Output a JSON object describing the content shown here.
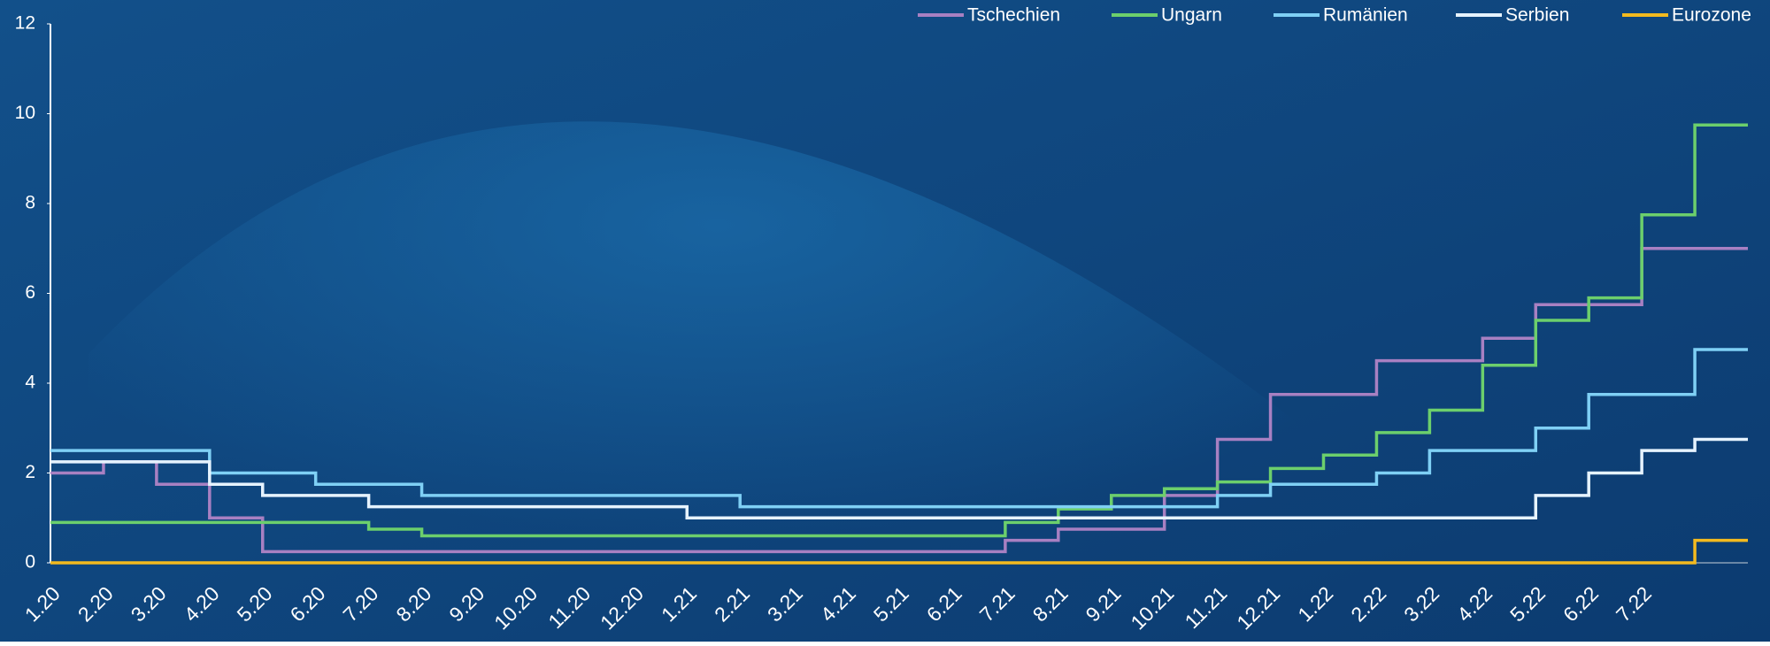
{
  "chart_data": {
    "type": "step",
    "categories": [
      "1.20",
      "2.20",
      "3.20",
      "4.20",
      "5.20",
      "6.20",
      "7.20",
      "8.20",
      "9.20",
      "10.20",
      "11.20",
      "12.20",
      "1.21",
      "2.21",
      "3.21",
      "4.21",
      "5.21",
      "6.21",
      "7.21",
      "8.21",
      "9.21",
      "10.21",
      "11.21",
      "12.21",
      "1.22",
      "2.22",
      "3.22",
      "4.22",
      "5.22",
      "6.22",
      "7.22",
      null
    ],
    "series": [
      {
        "name": "Tschechien",
        "color": "#a880c2",
        "values": [
          2.0,
          2.25,
          1.75,
          1.0,
          0.25,
          0.25,
          0.25,
          0.25,
          0.25,
          0.25,
          0.25,
          0.25,
          0.25,
          0.25,
          0.25,
          0.25,
          0.25,
          0.25,
          0.5,
          0.75,
          0.75,
          1.5,
          2.75,
          3.75,
          3.75,
          4.5,
          4.5,
          5.0,
          5.75,
          5.75,
          7.0,
          7.0
        ]
      },
      {
        "name": "Ungarn",
        "color": "#6ccf6c",
        "values": [
          0.9,
          0.9,
          0.9,
          0.9,
          0.9,
          0.9,
          0.75,
          0.6,
          0.6,
          0.6,
          0.6,
          0.6,
          0.6,
          0.6,
          0.6,
          0.6,
          0.6,
          0.6,
          0.9,
          1.2,
          1.5,
          1.65,
          1.8,
          2.1,
          2.4,
          2.9,
          3.4,
          4.4,
          5.4,
          5.9,
          7.75,
          9.75
        ]
      },
      {
        "name": "Rumänien",
        "color": "#7fd0f5",
        "values": [
          2.5,
          2.5,
          2.5,
          2.0,
          2.0,
          1.75,
          1.75,
          1.5,
          1.5,
          1.5,
          1.5,
          1.5,
          1.5,
          1.25,
          1.25,
          1.25,
          1.25,
          1.25,
          1.25,
          1.25,
          1.25,
          1.25,
          1.5,
          1.75,
          1.75,
          2.0,
          2.5,
          2.5,
          3.0,
          3.75,
          3.75,
          4.75
        ]
      },
      {
        "name": "Serbien",
        "color": "#e6f3ff",
        "values": [
          2.25,
          2.25,
          2.25,
          1.75,
          1.5,
          1.5,
          1.25,
          1.25,
          1.25,
          1.25,
          1.25,
          1.25,
          1.0,
          1.0,
          1.0,
          1.0,
          1.0,
          1.0,
          1.0,
          1.0,
          1.0,
          1.0,
          1.0,
          1.0,
          1.0,
          1.0,
          1.0,
          1.0,
          1.5,
          2.0,
          2.5,
          2.75
        ]
      },
      {
        "name": "Eurozone",
        "color": "#f3ba1f",
        "values": [
          0,
          0,
          0,
          0,
          0,
          0,
          0,
          0,
          0,
          0,
          0,
          0,
          0,
          0,
          0,
          0,
          0,
          0,
          0,
          0,
          0,
          0,
          0,
          0,
          0,
          0,
          0,
          0,
          0,
          0,
          0,
          0.5
        ]
      }
    ],
    "ylim": [
      0,
      12
    ],
    "yticks": [
      0,
      2,
      4,
      6,
      8,
      10,
      12
    ],
    "legend": "top-right"
  }
}
